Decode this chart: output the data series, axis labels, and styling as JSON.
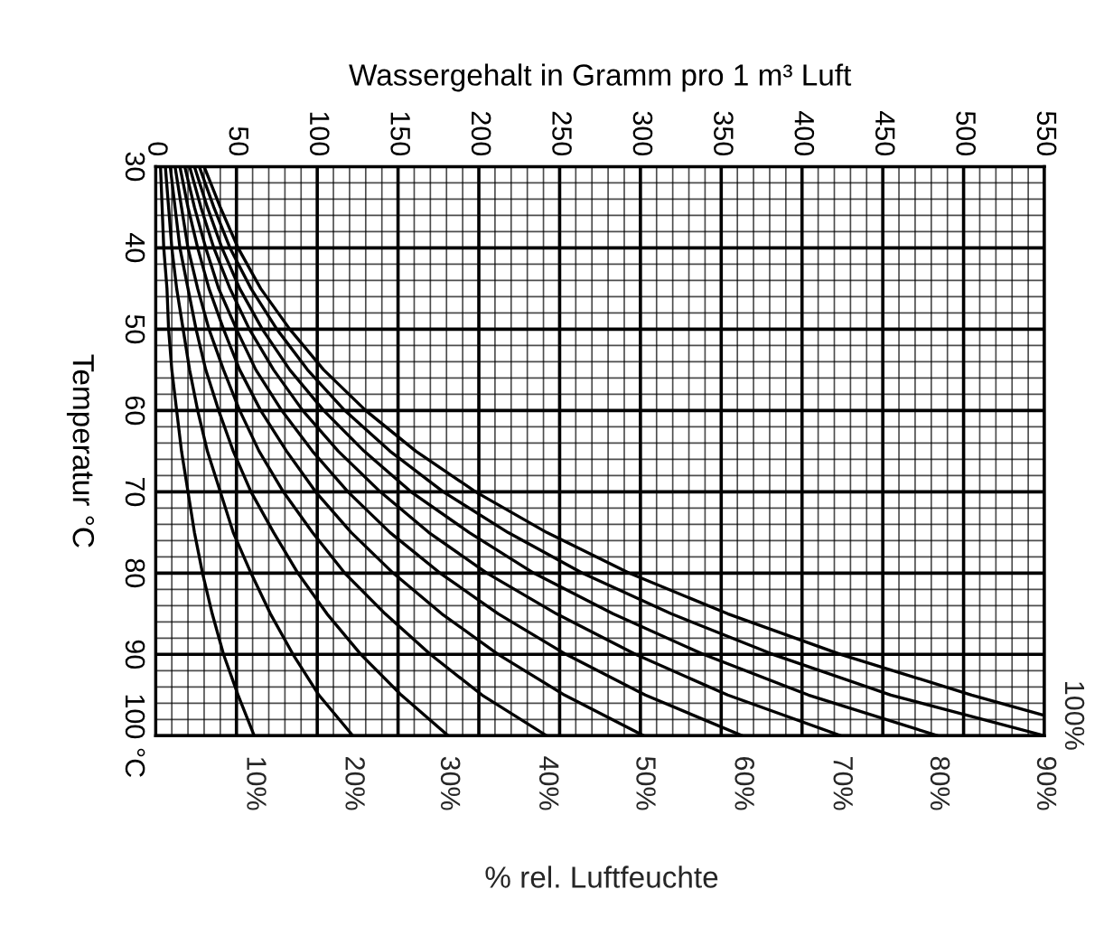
{
  "chart_data": {
    "type": "line",
    "xlabel": "Wassergehalt in Gramm pro 1 m³ Luft",
    "ylabel": "Temperatur °C",
    "annotations": [
      "% rel. Luftfeuchte"
    ],
    "xlim": [
      0,
      550
    ],
    "ylim": [
      100,
      30
    ],
    "xticks": [
      0,
      {
        "value": 10,
        "label": null
      },
      {
        "value": 20,
        "label": null
      },
      {
        "value": 30,
        "label": null
      },
      {
        "value": 40,
        "label": null
      },
      50,
      {
        "value": 60,
        "label": null
      },
      {
        "value": 70,
        "label": null
      },
      {
        "value": 80,
        "label": null
      },
      {
        "value": 90,
        "label": null
      },
      100,
      {
        "value": 110,
        "label": null
      },
      {
        "value": 120,
        "label": null
      },
      {
        "value": 130,
        "label": null
      },
      {
        "value": 140,
        "label": null
      },
      150,
      {
        "value": 160,
        "label": null
      },
      {
        "value": 170,
        "label": null
      },
      {
        "value": 180,
        "label": null
      },
      {
        "value": 190,
        "label": null
      },
      200,
      {
        "value": 210,
        "label": null
      },
      {
        "value": 220,
        "label": null
      },
      {
        "value": 230,
        "label": null
      },
      {
        "value": 240,
        "label": null
      },
      250,
      {
        "value": 260,
        "label": null
      },
      {
        "value": 270,
        "label": null
      },
      {
        "value": 280,
        "label": null
      },
      {
        "value": 290,
        "label": null
      },
      300,
      {
        "value": 310,
        "label": null
      },
      {
        "value": 320,
        "label": null
      },
      {
        "value": 330,
        "label": null
      },
      {
        "value": 340,
        "label": null
      },
      350,
      {
        "value": 360,
        "label": null
      },
      {
        "value": 370,
        "label": null
      },
      {
        "value": 380,
        "label": null
      },
      {
        "value": 390,
        "label": null
      },
      400,
      {
        "value": 410,
        "label": null
      },
      {
        "value": 420,
        "label": null
      },
      {
        "value": 430,
        "label": null
      },
      {
        "value": 440,
        "label": null
      },
      450,
      {
        "value": 460,
        "label": null
      },
      {
        "value": 470,
        "label": null
      },
      {
        "value": 480,
        "label": null
      },
      {
        "value": 490,
        "label": null
      },
      500,
      {
        "value": 510,
        "label": null
      },
      {
        "value": 520,
        "label": null
      },
      {
        "value": 530,
        "label": null
      },
      {
        "value": 540,
        "label": null
      },
      550
    ],
    "yticks": [
      30,
      {
        "value": 32,
        "label": null
      },
      {
        "value": 34,
        "label": null
      },
      {
        "value": 36,
        "label": null
      },
      {
        "value": 38,
        "label": null
      },
      40,
      {
        "value": 42,
        "label": null
      },
      {
        "value": 44,
        "label": null
      },
      {
        "value": 46,
        "label": null
      },
      {
        "value": 48,
        "label": null
      },
      50,
      {
        "value": 52,
        "label": null
      },
      {
        "value": 54,
        "label": null
      },
      {
        "value": 56,
        "label": null
      },
      {
        "value": 58,
        "label": null
      },
      60,
      {
        "value": 62,
        "label": null
      },
      {
        "value": 64,
        "label": null
      },
      {
        "value": 66,
        "label": null
      },
      {
        "value": 68,
        "label": null
      },
      70,
      {
        "value": 72,
        "label": null
      },
      {
        "value": 74,
        "label": null
      },
      {
        "value": 76,
        "label": null
      },
      {
        "value": 78,
        "label": null
      },
      80,
      {
        "value": 82,
        "label": null
      },
      {
        "value": 84,
        "label": null
      },
      {
        "value": 86,
        "label": null
      },
      {
        "value": 88,
        "label": null
      },
      90,
      {
        "value": 92,
        "label": null
      },
      {
        "value": 94,
        "label": null
      },
      {
        "value": 96,
        "label": null
      },
      {
        "value": 98,
        "label": null
      },
      {
        "value": 100,
        "label": "100 °C"
      }
    ],
    "grid": true,
    "series": [
      {
        "name": "10%",
        "color": "#000000",
        "x": [
          3,
          4,
          5,
          7,
          8,
          10,
          13,
          16,
          20,
          24,
          29,
          35,
          42,
          51,
          61
        ],
        "values": [
          30,
          35,
          40,
          45,
          50,
          55,
          60,
          65,
          70,
          75,
          80,
          85,
          90,
          95,
          100
        ]
      },
      {
        "name": "20%",
        "color": "#000000",
        "x": [
          6,
          8,
          10,
          13,
          17,
          21,
          26,
          32,
          40,
          48,
          59,
          71,
          85,
          101,
          122
        ],
        "values": [
          30,
          35,
          40,
          45,
          50,
          55,
          60,
          65,
          70,
          75,
          80,
          85,
          90,
          95,
          100
        ]
      },
      {
        "name": "30%",
        "color": "#000000",
        "x": [
          9,
          12,
          15,
          20,
          25,
          31,
          39,
          48,
          59,
          73,
          88,
          106,
          127,
          152,
          181
        ],
        "values": [
          30,
          35,
          40,
          45,
          50,
          55,
          60,
          65,
          70,
          75,
          80,
          85,
          90,
          95,
          100
        ]
      },
      {
        "name": "40%",
        "color": "#000000",
        "x": [
          12,
          16,
          20,
          26,
          33,
          42,
          52,
          64,
          79,
          97,
          117,
          142,
          170,
          202,
          242
        ],
        "values": [
          30,
          35,
          40,
          45,
          50,
          55,
          60,
          65,
          70,
          75,
          80,
          85,
          90,
          95,
          100
        ]
      },
      {
        "name": "50%",
        "color": "#000000",
        "x": [
          15,
          20,
          26,
          33,
          42,
          52,
          65,
          81,
          99,
          121,
          147,
          177,
          212,
          253,
          302
        ],
        "values": [
          30,
          35,
          40,
          45,
          50,
          55,
          60,
          65,
          70,
          75,
          80,
          85,
          90,
          95,
          100
        ]
      },
      {
        "name": "60%",
        "color": "#000000",
        "x": [
          18,
          24,
          31,
          39,
          50,
          62,
          78,
          97,
          119,
          145,
          176,
          212,
          254,
          303,
          363
        ],
        "values": [
          30,
          35,
          40,
          45,
          50,
          55,
          60,
          65,
          70,
          75,
          80,
          85,
          90,
          95,
          100
        ]
      },
      {
        "name": "70%",
        "color": "#000000",
        "x": [
          21,
          28,
          36,
          46,
          58,
          73,
          91,
          113,
          139,
          169,
          205,
          248,
          297,
          354,
          424
        ],
        "values": [
          30,
          35,
          40,
          45,
          50,
          55,
          60,
          65,
          70,
          75,
          80,
          85,
          90,
          95,
          100
        ]
      },
      {
        "name": "80%",
        "color": "#000000",
        "x": [
          24,
          32,
          41,
          52,
          66,
          83,
          104,
          129,
          158,
          194,
          234,
          283,
          339,
          404,
          484
        ],
        "values": [
          30,
          35,
          40,
          45,
          50,
          55,
          60,
          65,
          70,
          75,
          80,
          85,
          90,
          95,
          100
        ]
      },
      {
        "name": "90%",
        "color": "#000000",
        "x": [
          27,
          36,
          46,
          59,
          75,
          94,
          117,
          145,
          178,
          218,
          264,
          319,
          382,
          455,
          550
        ],
        "values": [
          30,
          35,
          40,
          45,
          50,
          55,
          60,
          65,
          70,
          75,
          80,
          85,
          90,
          95,
          100
        ]
      },
      {
        "name": "100%",
        "color": "#000000",
        "x": [
          30,
          40,
          51,
          65,
          83,
          104,
          130,
          161,
          198,
          242,
          293,
          354,
          424,
          505,
          550
        ],
        "values": [
          30,
          35,
          40,
          45,
          50,
          55,
          60,
          65,
          70,
          75,
          80,
          85,
          90,
          95,
          97.5
        ]
      }
    ]
  }
}
